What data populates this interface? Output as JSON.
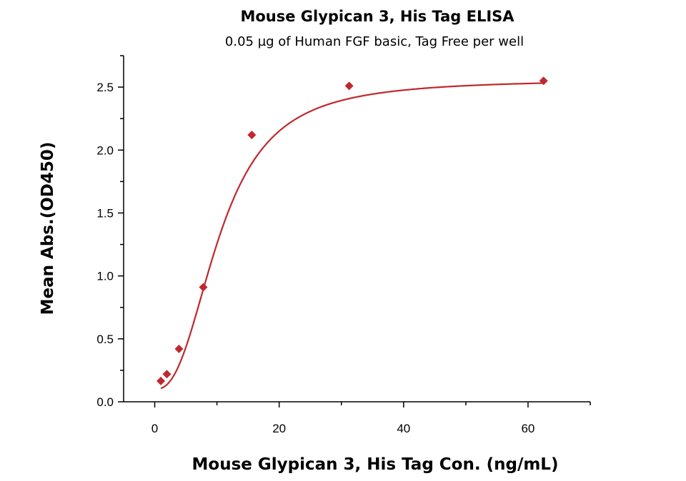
{
  "chart_data": {
    "type": "scatter",
    "title": "Mouse Glypican 3, His Tag ELISA",
    "subtitle": "0.05 µg of Human FGF basic, Tag Free per well",
    "xlabel": "Mouse Glypican 3, His Tag Con. (ng/mL)",
    "ylabel": "Mean Abs.(OD450)",
    "xlim": [
      -5,
      70
    ],
    "ylim": [
      0,
      2.75
    ],
    "xticks": [
      0,
      20,
      40,
      60
    ],
    "yticks": [
      0.0,
      0.5,
      1.0,
      1.5,
      2.0,
      2.5
    ],
    "xtick_labels": [
      "0",
      "20",
      "40",
      "60"
    ],
    "ytick_labels": [
      "0.0",
      "0.5",
      "1.0",
      "1.5",
      "2.0",
      "2.5"
    ],
    "grid": false,
    "legend": "none",
    "series": [
      {
        "x": [
          0.98,
          1.95,
          3.9,
          7.8,
          15.6,
          31.25,
          62.5
        ],
        "y": [
          0.165,
          0.22,
          0.42,
          0.91,
          2.12,
          2.51,
          2.55
        ],
        "marker": "diamond",
        "fit": {
          "model": "4PL",
          "bottom": 0.1,
          "top": 2.56,
          "ec50": 10.5,
          "hill": 2.5
        }
      }
    ],
    "colors": {
      "series": "#c0282d",
      "axis": "#000000"
    }
  }
}
